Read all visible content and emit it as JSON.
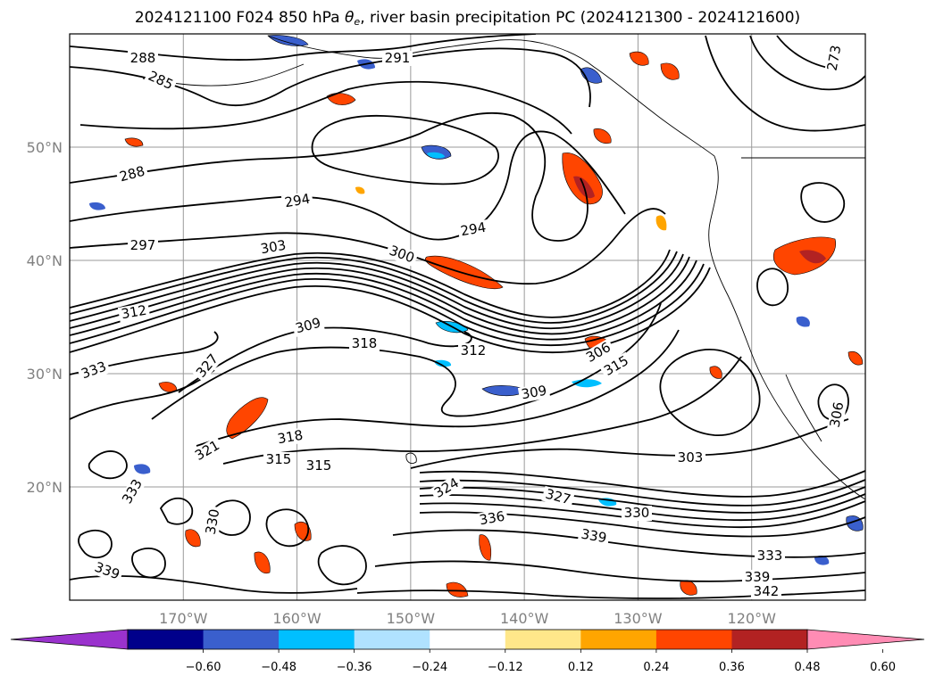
{
  "title": {
    "prefix": "2024121100 F024 850 hPa ",
    "theta": "θ",
    "theta_sub": "e",
    "suffix": ", river basin precipitation PC (2024121300 - 2024121600)"
  },
  "map": {
    "lon_range": [
      -180,
      -110
    ],
    "lat_range": [
      10,
      60
    ],
    "lat_ticks": [
      {
        "value": 20,
        "label": "20°N"
      },
      {
        "value": 30,
        "label": "30°N"
      },
      {
        "value": 40,
        "label": "40°N"
      },
      {
        "value": 50,
        "label": "50°N"
      }
    ],
    "lon_ticks": [
      {
        "value": -170,
        "label": "170°W"
      },
      {
        "value": -160,
        "label": "160°W"
      },
      {
        "value": -150,
        "label": "150°W"
      },
      {
        "value": -140,
        "label": "140°W"
      },
      {
        "value": -130,
        "label": "130°W"
      },
      {
        "value": -120,
        "label": "120°W"
      }
    ],
    "gridlines": true
  },
  "contour_labels": [
    "288",
    "285",
    "291",
    "294",
    "297",
    "303",
    "300",
    "312",
    "309",
    "318",
    "312",
    "306",
    "315",
    "309",
    "333",
    "327",
    "321",
    "318",
    "315",
    "315",
    "324",
    "327",
    "330",
    "336",
    "339",
    "303",
    "333",
    "339",
    "342",
    "306",
    "333",
    "330",
    "339",
    "288",
    "294",
    "273"
  ],
  "colorbar": {
    "levels": [
      "−0.60",
      "−0.48",
      "−0.36",
      "−0.24",
      "−0.12",
      "0.12",
      "0.24",
      "0.36",
      "0.48",
      "0.60"
    ],
    "colors": [
      "#9a32cd",
      "#00008b",
      "#3a5fcd",
      "#00bfff",
      "#b0e2ff",
      "#ffffff",
      "#ffe78a",
      "#ffa500",
      "#ff4500",
      "#b22222",
      "#ff8cb4"
    ],
    "extend": "both"
  }
}
